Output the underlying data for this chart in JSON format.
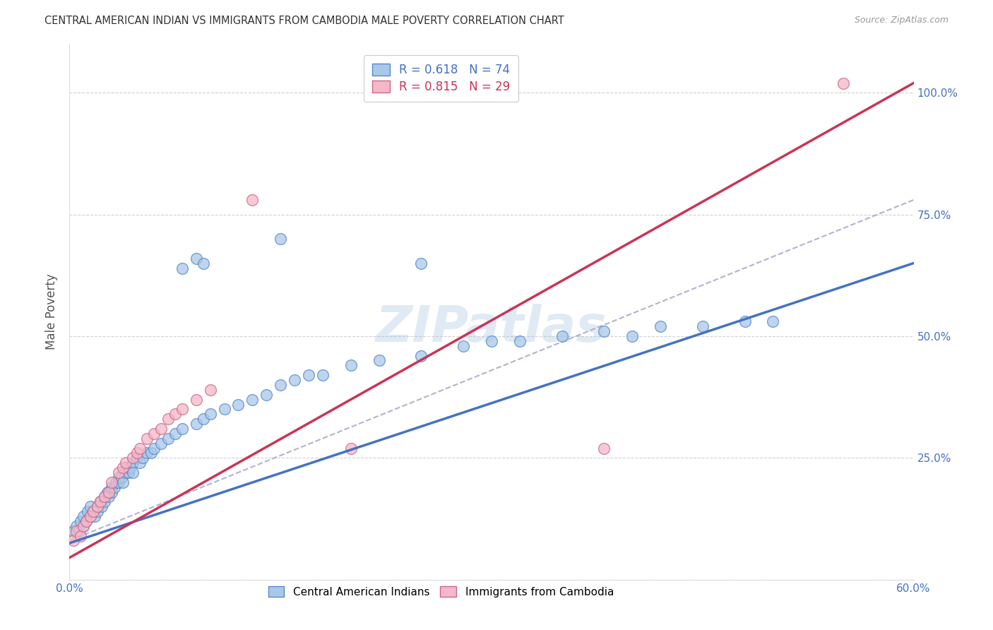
{
  "title": "CENTRAL AMERICAN INDIAN VS IMMIGRANTS FROM CAMBODIA MALE POVERTY CORRELATION CHART",
  "source": "Source: ZipAtlas.com",
  "ylabel": "Male Poverty",
  "x_min": 0.0,
  "x_max": 0.6,
  "y_min": 0.0,
  "y_max": 1.1,
  "x_ticks": [
    0.0,
    0.1,
    0.2,
    0.3,
    0.4,
    0.5,
    0.6
  ],
  "x_tick_labels": [
    "0.0%",
    "",
    "",
    "",
    "",
    "",
    "60.0%"
  ],
  "y_ticks": [
    0.0,
    0.25,
    0.5,
    0.75,
    1.0
  ],
  "y_tick_labels_right": [
    "",
    "25.0%",
    "50.0%",
    "75.0%",
    "100.0%"
  ],
  "watermark": "ZIPatlas",
  "blue_color": "#a8c8e8",
  "pink_color": "#f4b8c8",
  "blue_edge_color": "#5588cc",
  "pink_edge_color": "#cc6688",
  "blue_line_color": "#4472c4",
  "pink_line_color": "#cc3355",
  "dashed_line_color": "#aaaacc",
  "axis_color": "#4472c4",
  "grid_color": "#cccccc",
  "blue_line_x0": 0.0,
  "blue_line_y0": 0.075,
  "blue_line_x1": 0.6,
  "blue_line_y1": 0.65,
  "pink_line_x0": 0.0,
  "pink_line_y0": 0.045,
  "pink_line_x1": 0.6,
  "pink_line_y1": 1.02,
  "dash_line_x0": 0.0,
  "dash_line_y0": 0.08,
  "dash_line_x1": 0.6,
  "dash_line_y1": 0.78,
  "blue_points": [
    [
      0.003,
      0.1
    ],
    [
      0.005,
      0.11
    ],
    [
      0.007,
      0.1
    ],
    [
      0.008,
      0.12
    ],
    [
      0.01,
      0.13
    ],
    [
      0.01,
      0.11
    ],
    [
      0.012,
      0.12
    ],
    [
      0.013,
      0.14
    ],
    [
      0.015,
      0.13
    ],
    [
      0.015,
      0.15
    ],
    [
      0.017,
      0.14
    ],
    [
      0.018,
      0.13
    ],
    [
      0.02,
      0.15
    ],
    [
      0.02,
      0.14
    ],
    [
      0.022,
      0.16
    ],
    [
      0.023,
      0.15
    ],
    [
      0.025,
      0.16
    ],
    [
      0.025,
      0.17
    ],
    [
      0.027,
      0.18
    ],
    [
      0.028,
      0.17
    ],
    [
      0.03,
      0.18
    ],
    [
      0.03,
      0.19
    ],
    [
      0.032,
      0.19
    ],
    [
      0.033,
      0.2
    ],
    [
      0.035,
      0.2
    ],
    [
      0.035,
      0.21
    ],
    [
      0.037,
      0.21
    ],
    [
      0.038,
      0.2
    ],
    [
      0.04,
      0.22
    ],
    [
      0.04,
      0.23
    ],
    [
      0.042,
      0.22
    ],
    [
      0.043,
      0.23
    ],
    [
      0.045,
      0.24
    ],
    [
      0.045,
      0.22
    ],
    [
      0.048,
      0.25
    ],
    [
      0.05,
      0.24
    ],
    [
      0.052,
      0.25
    ],
    [
      0.055,
      0.26
    ],
    [
      0.058,
      0.26
    ],
    [
      0.06,
      0.27
    ],
    [
      0.065,
      0.28
    ],
    [
      0.07,
      0.29
    ],
    [
      0.075,
      0.3
    ],
    [
      0.08,
      0.31
    ],
    [
      0.09,
      0.32
    ],
    [
      0.095,
      0.33
    ],
    [
      0.1,
      0.34
    ],
    [
      0.11,
      0.35
    ],
    [
      0.12,
      0.36
    ],
    [
      0.13,
      0.37
    ],
    [
      0.14,
      0.38
    ],
    [
      0.15,
      0.4
    ],
    [
      0.16,
      0.41
    ],
    [
      0.17,
      0.42
    ],
    [
      0.18,
      0.42
    ],
    [
      0.2,
      0.44
    ],
    [
      0.22,
      0.45
    ],
    [
      0.25,
      0.46
    ],
    [
      0.28,
      0.48
    ],
    [
      0.3,
      0.49
    ],
    [
      0.32,
      0.49
    ],
    [
      0.35,
      0.5
    ],
    [
      0.38,
      0.51
    ],
    [
      0.4,
      0.5
    ],
    [
      0.42,
      0.52
    ],
    [
      0.45,
      0.52
    ],
    [
      0.48,
      0.53
    ],
    [
      0.5,
      0.53
    ],
    [
      0.08,
      0.64
    ],
    [
      0.09,
      0.66
    ],
    [
      0.095,
      0.65
    ],
    [
      0.15,
      0.7
    ],
    [
      0.25,
      0.65
    ]
  ],
  "pink_points": [
    [
      0.003,
      0.08
    ],
    [
      0.005,
      0.1
    ],
    [
      0.008,
      0.09
    ],
    [
      0.01,
      0.11
    ],
    [
      0.012,
      0.12
    ],
    [
      0.015,
      0.13
    ],
    [
      0.017,
      0.14
    ],
    [
      0.02,
      0.15
    ],
    [
      0.022,
      0.16
    ],
    [
      0.025,
      0.17
    ],
    [
      0.028,
      0.18
    ],
    [
      0.03,
      0.2
    ],
    [
      0.035,
      0.22
    ],
    [
      0.038,
      0.23
    ],
    [
      0.04,
      0.24
    ],
    [
      0.045,
      0.25
    ],
    [
      0.048,
      0.26
    ],
    [
      0.05,
      0.27
    ],
    [
      0.055,
      0.29
    ],
    [
      0.06,
      0.3
    ],
    [
      0.065,
      0.31
    ],
    [
      0.07,
      0.33
    ],
    [
      0.075,
      0.34
    ],
    [
      0.08,
      0.35
    ],
    [
      0.09,
      0.37
    ],
    [
      0.1,
      0.39
    ],
    [
      0.13,
      0.78
    ],
    [
      0.55,
      1.02
    ],
    [
      0.2,
      0.27
    ],
    [
      0.38,
      0.27
    ]
  ]
}
